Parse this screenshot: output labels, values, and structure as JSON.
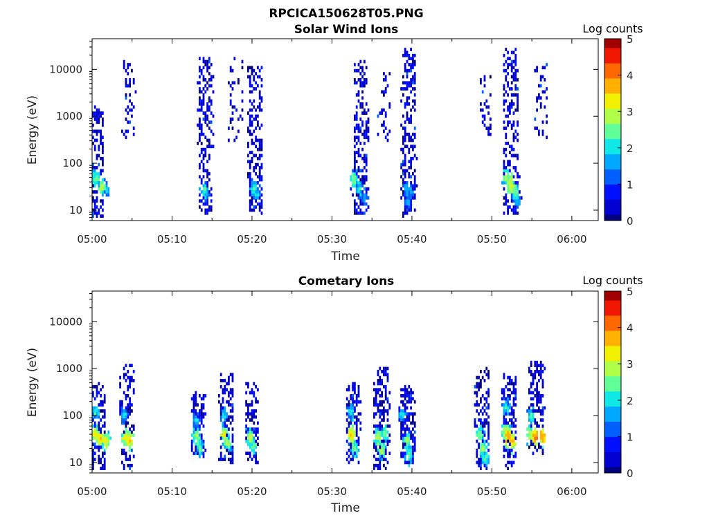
{
  "figure": {
    "filename": "RPCICA150628T05.PNG"
  },
  "colormap": [
    "#00007f",
    "#0000d0",
    "#0010ff",
    "#0060ff",
    "#00a8ff",
    "#10e8e8",
    "#60ff98",
    "#b0ff48",
    "#f0f000",
    "#ffb000",
    "#ff6800",
    "#f01800",
    "#a00000"
  ],
  "chart_data": [
    {
      "type": "heatmap",
      "title": "Solar Wind Ions",
      "xlabel": "Time",
      "ylabel": "Energy (eV)",
      "x_ticks": [
        "05:00",
        "05:10",
        "05:20",
        "05:30",
        "05:40",
        "05:50",
        "06:00"
      ],
      "x_range_minutes": [
        0,
        63.3
      ],
      "y_scale": "log",
      "y_ticks": [
        10,
        100,
        1000,
        10000
      ],
      "y_range": [
        6,
        45000
      ],
      "colorbar": {
        "label": "Log counts",
        "range": [
          0,
          5
        ],
        "ticks": [
          0,
          1,
          2,
          3,
          4,
          5
        ]
      },
      "grid": false,
      "bursts": [
        {
          "t": 0.6,
          "core": [
            [
              0.2,
              60,
              2.2
            ],
            [
              0.5,
              45,
              2.5
            ],
            [
              1.2,
              30,
              2.8
            ],
            [
              1.8,
              28,
              2.0
            ]
          ],
          "halo_e": [
            7,
            1500
          ],
          "halo_w": 1.6,
          "halo_n": 180
        },
        {
          "t": 4.6,
          "core": [],
          "halo_e": [
            300,
            15000
          ],
          "halo_w": 1.5,
          "halo_n": 45
        },
        {
          "t": 14.2,
          "core": [
            [
              14.0,
              28,
              2.2
            ],
            [
              14.3,
              20,
              1.8
            ]
          ],
          "halo_e": [
            8,
            20000
          ],
          "halo_w": 1.8,
          "halo_n": 200
        },
        {
          "t": 18.0,
          "core": [],
          "halo_e": [
            300,
            20000
          ],
          "halo_w": 1.8,
          "halo_n": 40
        },
        {
          "t": 20.4,
          "core": [
            [
              20.2,
              30,
              2.3
            ],
            [
              20.6,
              22,
              2.0
            ]
          ],
          "halo_e": [
            8,
            12000
          ],
          "halo_w": 1.8,
          "halo_n": 200
        },
        {
          "t": 33.6,
          "core": [
            [
              32.8,
              45,
              2.6
            ],
            [
              33.5,
              28,
              2.2
            ],
            [
              34.0,
              18,
              1.6
            ]
          ],
          "halo_e": [
            8,
            15000
          ],
          "halo_w": 1.8,
          "halo_n": 200
        },
        {
          "t": 36.5,
          "core": [],
          "halo_e": [
            300,
            9000
          ],
          "halo_w": 1.6,
          "halo_n": 35
        },
        {
          "t": 39.6,
          "core": [
            [
              39.3,
              28,
              1.7
            ],
            [
              39.5,
              14,
              1.6
            ],
            [
              39.8,
              25,
              1.5
            ]
          ],
          "halo_e": [
            8,
            28000
          ],
          "halo_w": 1.9,
          "halo_n": 220
        },
        {
          "t": 49.2,
          "core": [],
          "halo_e": [
            400,
            9000
          ],
          "halo_w": 1.5,
          "halo_n": 30
        },
        {
          "t": 52.4,
          "core": [
            [
              51.8,
              50,
              2.8
            ],
            [
              52.4,
              35,
              3.2
            ],
            [
              52.9,
              25,
              2.6
            ],
            [
              53.2,
              16,
              1.8
            ]
          ],
          "halo_e": [
            8,
            25000
          ],
          "halo_w": 1.9,
          "halo_n": 230
        },
        {
          "t": 56.2,
          "core": [],
          "halo_e": [
            300,
            12000
          ],
          "halo_w": 1.6,
          "halo_n": 40
        }
      ]
    },
    {
      "type": "heatmap",
      "title": "Cometary Ions",
      "xlabel": "Time",
      "ylabel": "Energy (eV)",
      "x_ticks": [
        "05:00",
        "05:10",
        "05:20",
        "05:30",
        "05:40",
        "05:50",
        "06:00"
      ],
      "x_range_minutes": [
        0,
        63.3
      ],
      "y_scale": "log",
      "y_ticks": [
        10,
        100,
        1000,
        10000
      ],
      "y_range": [
        6,
        45000
      ],
      "colorbar": {
        "label": "Log counts",
        "range": [
          0,
          5
        ],
        "ticks": [
          0,
          1,
          2,
          3,
          4,
          5
        ]
      },
      "grid": false,
      "bursts": [
        {
          "t": 0.8,
          "core": [
            [
              0.4,
              40,
              3.3
            ],
            [
              1.1,
              32,
              3.5
            ],
            [
              1.7,
              30,
              3.2
            ],
            [
              0.5,
              120,
              2.2
            ]
          ],
          "halo_e": [
            7,
            500
          ],
          "halo_w": 1.8,
          "halo_n": 160
        },
        {
          "t": 4.4,
          "core": [
            [
              4.2,
              35,
              3.2
            ],
            [
              4.7,
              30,
              3.4
            ],
            [
              4.0,
              100,
              2.0
            ]
          ],
          "halo_e": [
            7,
            1300
          ],
          "halo_w": 1.6,
          "halo_n": 120
        },
        {
          "t": 13.3,
          "core": [
            [
              13.1,
              35,
              2.8
            ],
            [
              13.5,
              20,
              2.4
            ],
            [
              13.0,
              80,
              1.8
            ]
          ],
          "halo_e": [
            15,
            300
          ],
          "halo_w": 1.6,
          "halo_n": 110
        },
        {
          "t": 16.8,
          "core": [
            [
              16.6,
              40,
              3.2
            ],
            [
              16.9,
              25,
              2.8
            ],
            [
              16.5,
              100,
              2.0
            ]
          ],
          "halo_e": [
            10,
            800
          ],
          "halo_w": 1.8,
          "halo_n": 140
        },
        {
          "t": 20.0,
          "core": [
            [
              19.8,
              35,
              2.9
            ],
            [
              20.2,
              22,
              2.5
            ]
          ],
          "halo_e": [
            10,
            500
          ],
          "halo_w": 1.6,
          "halo_n": 110
        },
        {
          "t": 32.7,
          "core": [
            [
              32.5,
              40,
              3.5
            ],
            [
              32.8,
              20,
              2.6
            ],
            [
              32.4,
              120,
              2.0
            ]
          ],
          "halo_e": [
            10,
            500
          ],
          "halo_w": 1.6,
          "halo_n": 130
        },
        {
          "t": 36.2,
          "core": [
            [
              35.8,
              35,
              3.0
            ],
            [
              36.3,
              18,
              2.8
            ],
            [
              36.6,
              40,
              2.5
            ]
          ],
          "halo_e": [
            7,
            1200
          ],
          "halo_w": 2.0,
          "halo_n": 170
        },
        {
          "t": 39.5,
          "core": [
            [
              39.4,
              30,
              2.8
            ],
            [
              39.6,
              15,
              2.6
            ],
            [
              38.8,
              100,
              2.0
            ]
          ],
          "halo_e": [
            10,
            400
          ],
          "halo_w": 1.8,
          "halo_n": 140
        },
        {
          "t": 48.8,
          "core": [
            [
              48.5,
              40,
              2.7
            ],
            [
              48.9,
              20,
              2.8
            ],
            [
              49.2,
              12,
              2.4
            ]
          ],
          "halo_e": [
            7,
            1000
          ],
          "halo_w": 1.8,
          "halo_n": 150
        },
        {
          "t": 52.2,
          "core": [
            [
              51.8,
              45,
              3.3
            ],
            [
              52.1,
              35,
              3.8
            ],
            [
              52.6,
              28,
              3.5
            ],
            [
              51.8,
              150,
              2.2
            ]
          ],
          "halo_e": [
            8,
            800
          ],
          "halo_w": 1.8,
          "halo_n": 170
        },
        {
          "t": 55.6,
          "core": [
            [
              54.8,
              40,
              3.0
            ],
            [
              55.5,
              35,
              3.9
            ],
            [
              56.3,
              35,
              3.8
            ],
            [
              54.9,
              100,
              2.2
            ]
          ],
          "halo_e": [
            15,
            1500
          ],
          "halo_w": 1.8,
          "halo_n": 160
        }
      ]
    }
  ]
}
